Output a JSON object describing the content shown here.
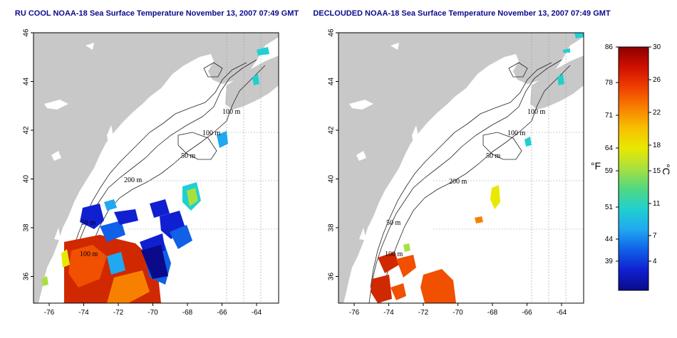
{
  "panels": [
    {
      "id": "raw",
      "title": "RU COOL NOAA-18 Sea Surface Temperature November 13, 2007 07:49 GMT"
    },
    {
      "id": "declouded",
      "title": "DECLOUDED NOAA-18 Sea Surface Temperature November 13, 2007 07:49 GMT"
    }
  ],
  "x_ticks": [
    "-76",
    "-74",
    "-72",
    "-70",
    "-68",
    "-66",
    "-64"
  ],
  "y_ticks": [
    "46",
    "44",
    "42",
    "40",
    "38",
    "36"
  ],
  "contour_labels": [
    "100 m",
    "100 m",
    "50 m",
    "200 m",
    "50 m",
    "100 m"
  ],
  "colorbar": {
    "fahrenheit_ticks": [
      "86",
      "78",
      "71",
      "64",
      "59",
      "51",
      "44",
      "39"
    ],
    "celsius_ticks": [
      "30",
      "26",
      "22",
      "18",
      "15",
      "11",
      "7",
      "4"
    ],
    "fahrenheit_label": "°F",
    "celsius_label": "°C",
    "colors": [
      "#8b0000",
      "#d01000",
      "#f04000",
      "#f88000",
      "#f8c000",
      "#e8e800",
      "#a8e040",
      "#50d880",
      "#20d0d0",
      "#20a8f0",
      "#1060e8",
      "#1020d0",
      "#0a0a8a"
    ]
  },
  "colors": {
    "land": "#c8c8c8",
    "ocean": "#ffffff",
    "title": "#0b0b8c",
    "grid": "#999999"
  }
}
